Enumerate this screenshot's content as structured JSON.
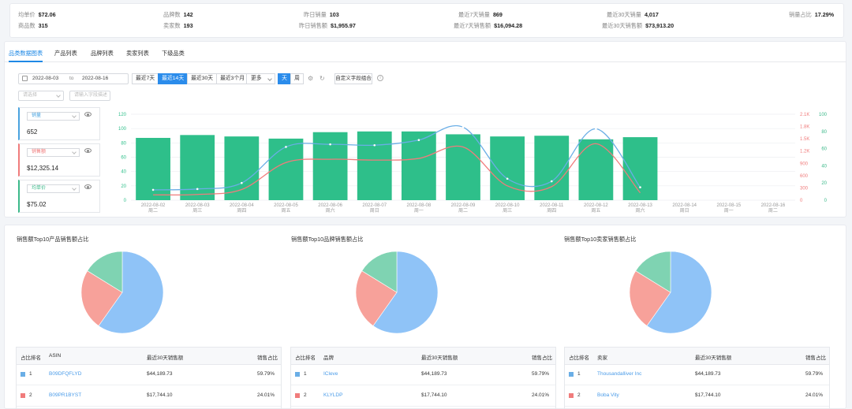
{
  "stats": {
    "avg_price_label": "均单价",
    "avg_price": "$72.06",
    "brands_label": "品牌数",
    "brands": "142",
    "yesterday_sales_label": "昨日销量",
    "yesterday_sales": "103",
    "last7_sales_label": "最近7天销量",
    "last7_sales": "869",
    "last30_sales_label": "最近30天销量",
    "last30_sales": "4,017",
    "share_label": "销量占比",
    "share": "17.29%",
    "products_label": "商品数",
    "products": "315",
    "sellers_label": "卖家数",
    "sellers": "193",
    "yesterday_revenue_label": "昨日销售额",
    "yesterday_revenue": "$1,955.97",
    "last7_revenue_label": "最近7天销售额",
    "last7_revenue": "$16,094.28",
    "last30_revenue_label": "最近30天销售额",
    "last30_revenue": "$73,913.20"
  },
  "tabs": [
    "品类数据图表",
    "产品列表",
    "品牌列表",
    "卖家列表",
    "下级品类"
  ],
  "date_from": "2022-08-03",
  "date_to_label": "to",
  "date_to": "2022-08-16",
  "ranges": [
    "最近7天",
    "最近14天",
    "最近30天",
    "最近3个月"
  ],
  "more": "更多",
  "day_label": "天",
  "week_label": "周",
  "custom_label": "自定义字段组合",
  "select1_placeholder": "请选择",
  "select2_placeholder": "请输入字段描述",
  "metrics": [
    {
      "name": "销量",
      "value": "652",
      "color": "#4aa3df"
    },
    {
      "name": "销售额",
      "value": "$12,325.14",
      "color": "#f07c7c"
    },
    {
      "name": "均单价",
      "value": "$75.02",
      "color": "#3cb98a"
    }
  ],
  "chart_data": {
    "type": "bar",
    "categories": [
      "2022-08-02",
      "2022-08-03",
      "2022-08-04",
      "2022-08-05",
      "2022-08-06",
      "2022-08-07",
      "2022-08-08",
      "2022-08-09",
      "2022-08-10",
      "2022-08-11",
      "2022-08-12",
      "2022-08-13",
      "2022-08-14",
      "2022-08-15",
      "2022-08-16"
    ],
    "weekdays": [
      "周二",
      "周三",
      "周四",
      "周五",
      "周六",
      "周日",
      "周一",
      "周二",
      "周三",
      "周四",
      "周五",
      "周六",
      "周日",
      "周一",
      "周二"
    ],
    "y_left_ticks": [
      "0",
      "20",
      "40",
      "60",
      "80",
      "100",
      "120"
    ],
    "y_right1_ticks": [
      "0",
      "300",
      "600",
      "900",
      "1.2K",
      "1.5K",
      "1.8K",
      "2.1K"
    ],
    "y_right2_ticks": [
      "0",
      "20",
      "40",
      "60",
      "80",
      "100"
    ],
    "colors": {
      "bar": "#2ebf8a",
      "sales": "#f07c7c",
      "revenue": "#6aaee6"
    },
    "series": [
      {
        "values": [
          87,
          91,
          89,
          86,
          95,
          96,
          96,
          92,
          89,
          90,
          85,
          88,
          null,
          null,
          null
        ]
      },
      {
        "values": [
          130,
          140,
          260,
          920,
          1000,
          980,
          1020,
          1300,
          350,
          330,
          1380,
          180,
          null,
          null,
          null
        ]
      },
      {
        "values": [
          12,
          13,
          20,
          62,
          65,
          64,
          70,
          85,
          25,
          22,
          83,
          15,
          null,
          null,
          null
        ]
      }
    ],
    "ylim_left": [
      0,
      120
    ],
    "ylim_right1": [
      0,
      2100
    ],
    "ylim_right2": [
      0,
      100
    ],
    "grid": true
  },
  "pie_titles": [
    "销售额Top10产品销售额占比",
    "销售额Top10品牌销售额占比",
    "销售额Top10卖家销售额占比"
  ],
  "pie_data": [
    {
      "values": [
        59.79,
        24.01,
        16.2
      ],
      "colors": [
        "#8fc3f7",
        "#f7a19a",
        "#7fd3b2"
      ]
    },
    {
      "values": [
        59.79,
        24.01,
        16.2
      ],
      "colors": [
        "#8fc3f7",
        "#f7a19a",
        "#7fd3b2"
      ]
    },
    {
      "values": [
        59.79,
        24.01,
        16.2
      ],
      "colors": [
        "#8fc3f7",
        "#f7a19a",
        "#7fd3b2"
      ]
    }
  ],
  "tables": [
    {
      "headers": [
        "占比排名",
        "ASIN",
        "最近30天销售额",
        "销售占比"
      ],
      "rows": [
        [
          "1",
          "B09DFQFLYD",
          "$44,189.73",
          "59.79%"
        ],
        [
          "2",
          "B09PR1BYST",
          "$17,744.10",
          "24.01%"
        ]
      ]
    },
    {
      "headers": [
        "占比排名",
        "品牌",
        "最近30天销售额",
        "销售占比"
      ],
      "rows": [
        [
          "1",
          "ICleve",
          "$44,189.73",
          "59.79%"
        ],
        [
          "2",
          "KLYLDP",
          "$17,744.10",
          "24.01%"
        ]
      ]
    },
    {
      "headers": [
        "占比排名",
        "卖家",
        "最近30天销售额",
        "销售占比"
      ],
      "rows": [
        [
          "1",
          "Thousandalliver Inc",
          "$44,189.73",
          "59.79%"
        ],
        [
          "2",
          "Boba Vity",
          "$17,744.10",
          "24.01%"
        ]
      ]
    }
  ]
}
